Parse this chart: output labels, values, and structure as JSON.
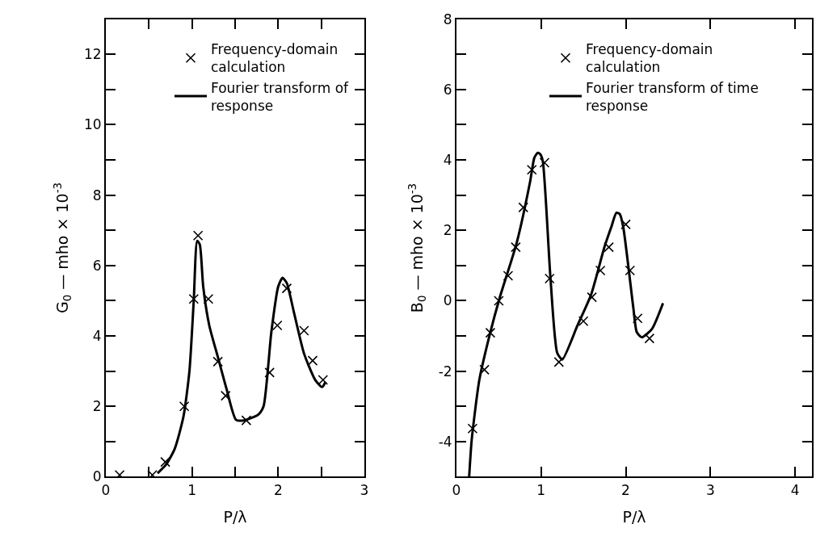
{
  "chart_data": [
    {
      "type": "scatter",
      "xlabel": "P/λ",
      "ylabel": "G$_{0}$ — mho × 10$^{-3}$",
      "xlim": [
        0,
        3
      ],
      "ylim": [
        0,
        13
      ],
      "xticks": [
        0,
        {
          "value": 0.5,
          "label": null
        },
        1,
        {
          "value": 1.5,
          "label": null
        },
        2,
        {
          "value": 2.5,
          "label": null
        },
        3
      ],
      "yticks": [
        0,
        {
          "value": 1,
          "label": null
        },
        2,
        {
          "value": 3,
          "label": null
        },
        4,
        {
          "value": 5,
          "label": null
        },
        6,
        {
          "value": 7,
          "label": null
        },
        8,
        {
          "value": 9,
          "label": null
        },
        10,
        {
          "value": 11,
          "label": null
        },
        12
      ],
      "legend": "top",
      "series": [
        {
          "name": "Frequency-domain\ncalculation",
          "marker": "cross",
          "color": "#000000",
          "x": [
            0.16,
            0.54,
            0.69,
            0.91,
            1.02,
            1.07,
            1.19,
            1.3,
            1.39,
            1.63,
            1.9,
            1.99,
            2.1,
            2.3,
            2.4,
            2.52
          ],
          "values": [
            0.05,
            0.05,
            0.42,
            2.0,
            5.05,
            6.85,
            5.05,
            3.27,
            2.3,
            1.6,
            2.96,
            4.3,
            5.35,
            4.15,
            3.3,
            2.75
          ]
        },
        {
          "name": "Fourier transform of\nresponse",
          "type": "line",
          "marker": "none",
          "line_style": "solid",
          "color": "#000000",
          "x": [
            0.6,
            0.7,
            0.8,
            0.9,
            0.97,
            1.02,
            1.06,
            1.09,
            1.13,
            1.2,
            1.3,
            1.4,
            1.51,
            1.6,
            1.77,
            1.83,
            1.92,
            2.0,
            2.05,
            2.1,
            2.18,
            2.3,
            2.43,
            2.51,
            2.55
          ],
          "values": [
            0.1,
            0.35,
            0.8,
            1.7,
            3.0,
            5.0,
            6.7,
            6.6,
            5.4,
            4.3,
            3.4,
            2.5,
            1.62,
            1.6,
            1.77,
            2.0,
            4.1,
            5.4,
            5.65,
            5.5,
            4.7,
            3.5,
            2.75,
            2.55,
            2.7
          ]
        }
      ]
    },
    {
      "type": "scatter",
      "xlabel": "P/λ",
      "ylabel": "B$_{0}$ — mho × 10$^{-3}$",
      "xlim": [
        0,
        4.2
      ],
      "ylim": [
        -5,
        8
      ],
      "xticks": [
        0,
        1,
        2,
        3,
        4
      ],
      "yticks": [
        -4,
        {
          "value": -3,
          "label": null
        },
        -2,
        {
          "value": -1,
          "label": null
        },
        0,
        {
          "value": 1,
          "label": null
        },
        2,
        {
          "value": 3,
          "label": null
        },
        4,
        {
          "value": 5,
          "label": null
        },
        6,
        {
          "value": 7,
          "label": null
        },
        8
      ],
      "legend": "top",
      "series": [
        {
          "name": "Frequency-domain\ncalculation",
          "marker": "cross",
          "color": "#000000",
          "x": [
            0.19,
            0.33,
            0.4,
            0.5,
            0.61,
            0.7,
            0.79,
            0.89,
            1.04,
            1.1,
            1.21,
            1.5,
            1.6,
            1.7,
            1.8,
            2.0,
            2.05,
            2.14,
            2.28
          ],
          "values": [
            -3.63,
            -1.96,
            -0.91,
            0.0,
            0.71,
            1.52,
            2.65,
            3.72,
            3.92,
            0.63,
            -1.74,
            -0.58,
            0.1,
            0.86,
            1.52,
            2.17,
            0.86,
            -0.5,
            -1.07
          ]
        },
        {
          "name": "Fourier transform of time\nresponse",
          "type": "line",
          "marker": "none",
          "line_style": "solid",
          "color": "#000000",
          "x": [
            0.15,
            0.18,
            0.27,
            0.39,
            0.51,
            0.71,
            0.87,
            0.92,
            0.96,
            0.99,
            1.02,
            1.11,
            1.19,
            1.25,
            1.43,
            1.59,
            1.75,
            1.83,
            1.89,
            1.93,
            1.97,
            2.09,
            2.13,
            2.19,
            2.31,
            2.44
          ],
          "values": [
            -5.0,
            -3.95,
            -2.25,
            -0.99,
            0.08,
            1.63,
            3.38,
            4.06,
            4.2,
            4.16,
            3.96,
            0.66,
            -1.48,
            -1.67,
            -0.7,
            0.17,
            1.54,
            2.1,
            2.5,
            2.46,
            2.1,
            -0.21,
            -0.89,
            -1.04,
            -0.8,
            -0.07
          ]
        }
      ]
    }
  ]
}
